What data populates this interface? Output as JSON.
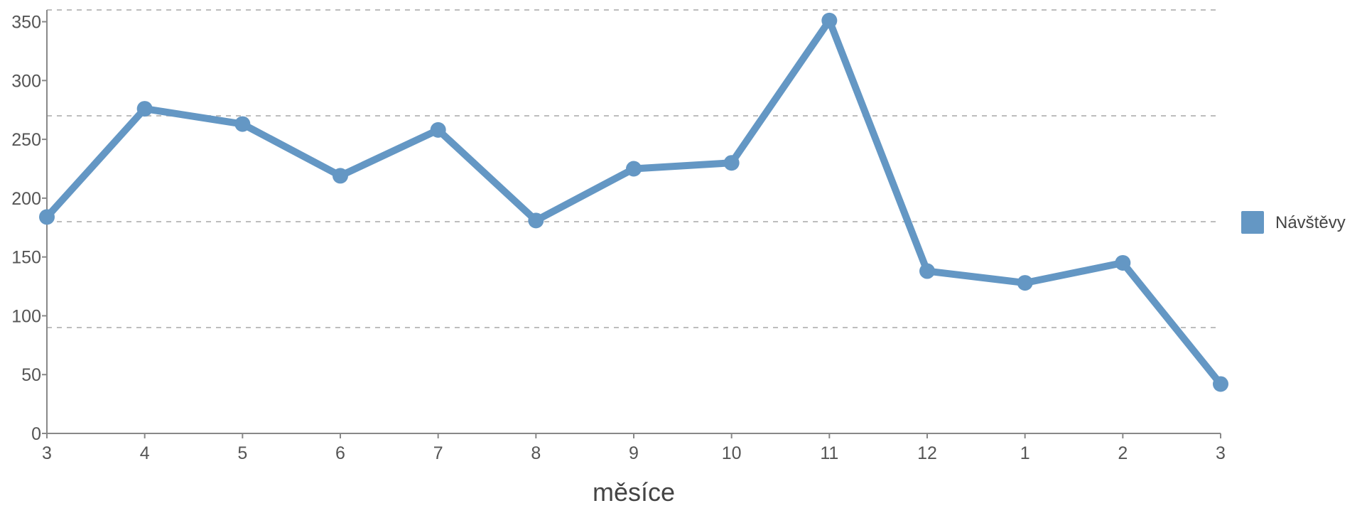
{
  "chart_data": {
    "type": "line",
    "categories": [
      "3",
      "4",
      "5",
      "6",
      "7",
      "8",
      "9",
      "10",
      "11",
      "12",
      "1",
      "2",
      "3"
    ],
    "series": [
      {
        "name": "Návštěvy",
        "values": [
          184,
          276,
          263,
          219,
          258,
          181,
          225,
          230,
          351,
          138,
          128,
          145,
          42
        ],
        "color": "#6497c4"
      }
    ],
    "xlabel": "měsíce",
    "ylabel": "",
    "ylim": [
      0,
      360
    ],
    "yticks": [
      "0",
      "50",
      "100",
      "150",
      "200",
      "250",
      "300",
      "350"
    ],
    "grid": true,
    "legend_position": "right"
  }
}
